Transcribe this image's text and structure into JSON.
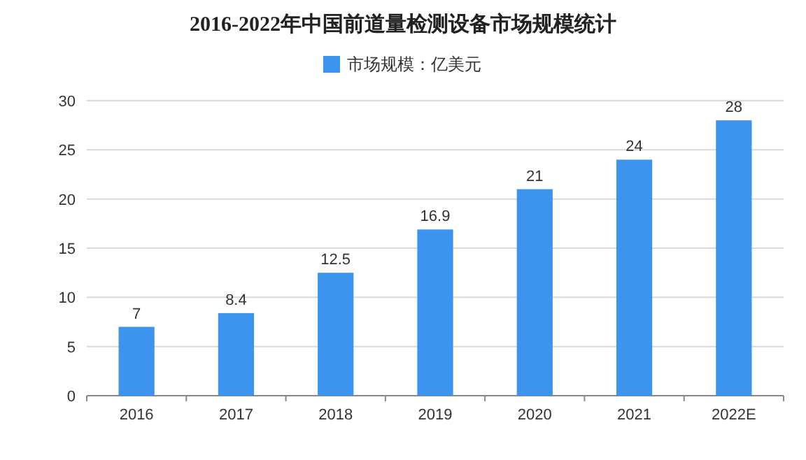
{
  "chart_data": {
    "type": "bar",
    "title": "2016-2022年中国前道量检测设备市场规模统计",
    "categories": [
      "2016",
      "2017",
      "2018",
      "2019",
      "2020",
      "2021",
      "2022E"
    ],
    "series": [
      {
        "name": "市场规模：亿美元",
        "color": "#3d94ee",
        "values": [
          7,
          8.4,
          12.5,
          16.9,
          21,
          24,
          28
        ]
      }
    ],
    "ylim": [
      0,
      30
    ],
    "yticks": [
      0,
      5,
      10,
      15,
      20,
      25,
      30
    ],
    "grid": "y",
    "legend": "top",
    "data_labels": true
  }
}
